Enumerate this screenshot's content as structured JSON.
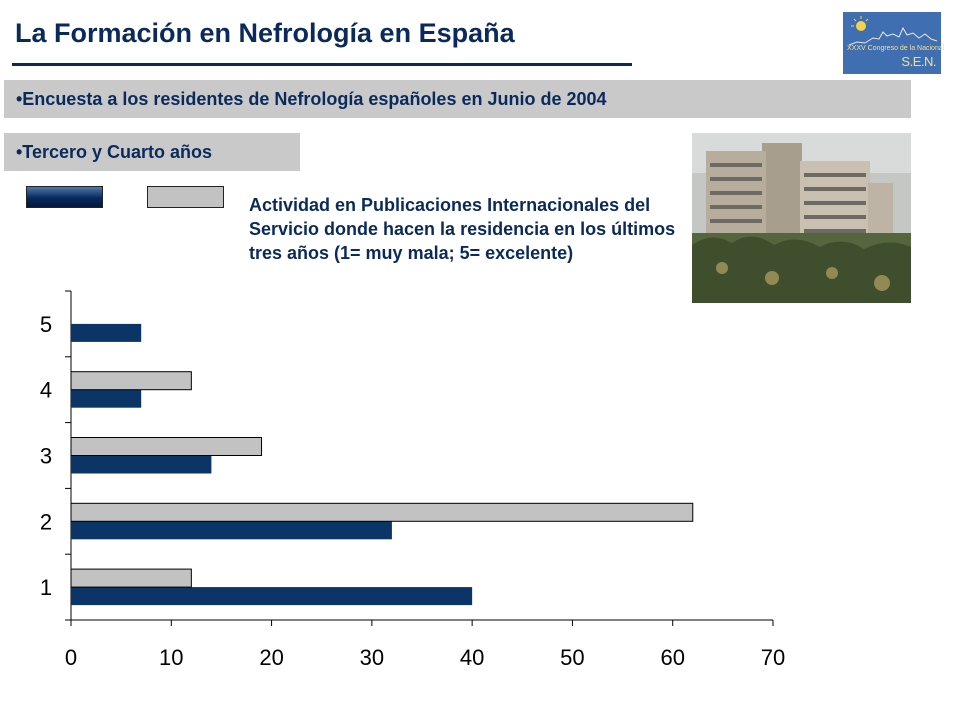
{
  "header": {
    "title": "La Formación en Nefrología en España",
    "logo_text": "XXXV Congreso de la Nacional",
    "logo_sen": "S.E.N."
  },
  "bands": {
    "survey": "•Encuesta a los residentes de Nefrología españoles en Junio de 2004",
    "years": "•Tercero y Cuarto años"
  },
  "caption": "Actividad en Publicaciones Internacionales del Servicio donde hacen la residencia en los últimos tres años (1= muy mala; 5= excelente)",
  "colors": {
    "series_dark": "#0a3566",
    "series_gray": "#c2c2c2",
    "text_navy": "#0a2a5c",
    "band_gray": "#c9c9c9"
  },
  "chart_data": {
    "type": "bar",
    "orientation": "horizontal",
    "categories": [
      "1",
      "2",
      "3",
      "4",
      "5"
    ],
    "series": [
      {
        "values": [
          40,
          32,
          14,
          7,
          7
        ]
      },
      {
        "values": [
          12,
          62,
          19,
          12,
          0
        ]
      }
    ],
    "xlim": [
      0,
      70
    ],
    "xticks": [
      0,
      10,
      20,
      30,
      40,
      50,
      60,
      70
    ],
    "legend": "top-left",
    "grid": false
  }
}
